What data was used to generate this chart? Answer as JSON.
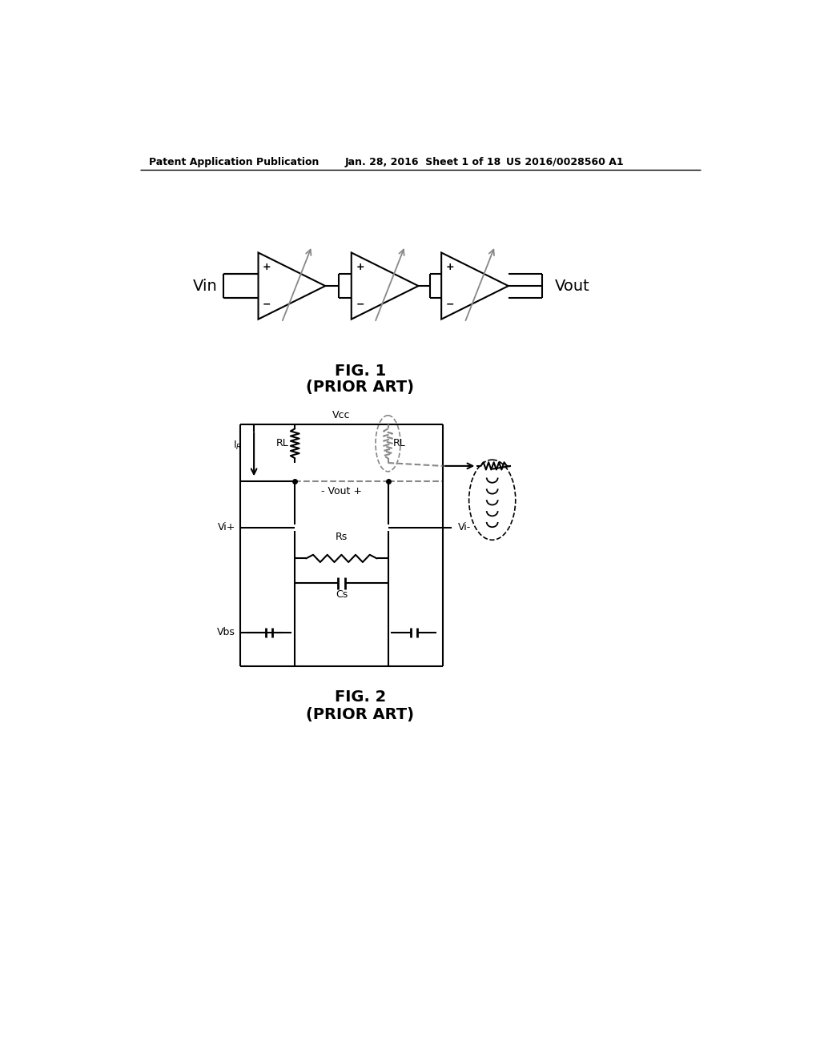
{
  "bg_color": "#ffffff",
  "header_left": "Patent Application Publication",
  "header_center": "Jan. 28, 2016  Sheet 1 of 18",
  "header_right": "US 2016/0028560 A1",
  "fig1_caption": "FIG. 1",
  "fig1_subcaption": "(PRIOR ART)",
  "fig2_caption": "FIG. 2",
  "fig2_subcaption": "(PRIOR ART)",
  "line_color": "#000000",
  "gray_color": "#888888"
}
